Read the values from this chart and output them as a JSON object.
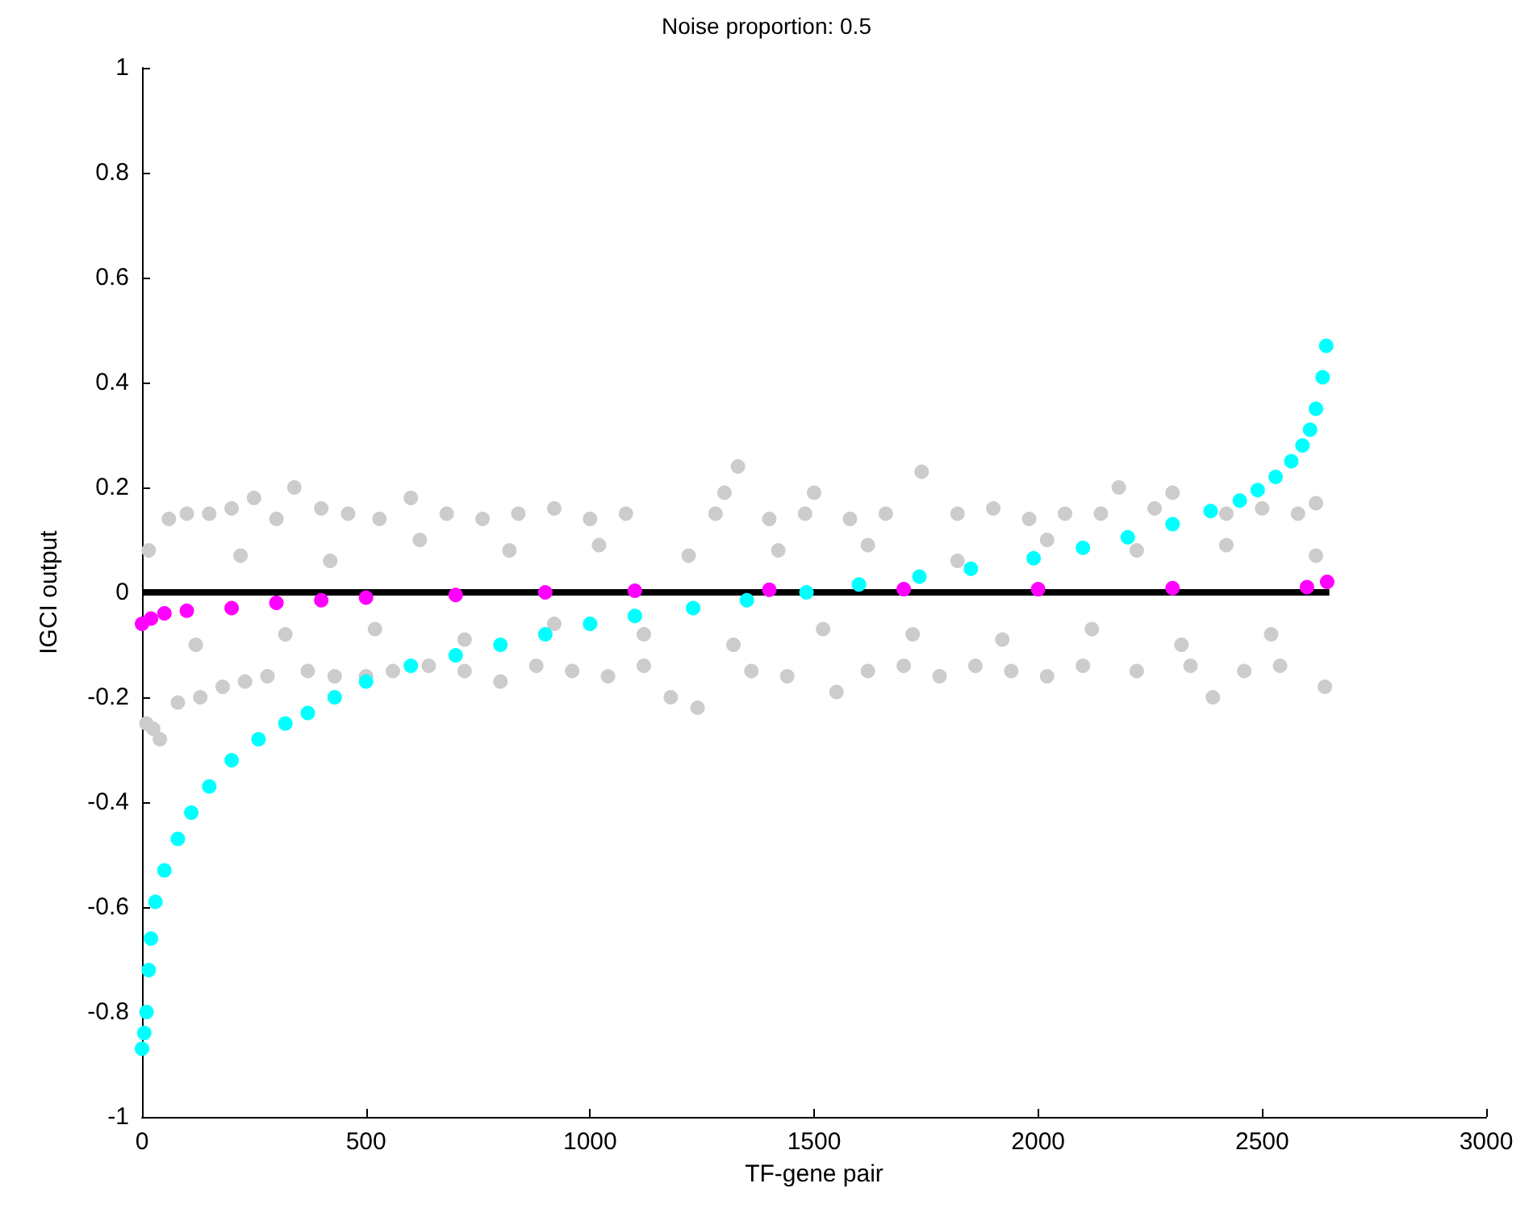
{
  "chart_data": {
    "type": "scatter",
    "title": "Noise proportion: 0.5",
    "xlabel": "TF-gene pair",
    "ylabel": "IGCI output",
    "xlim": [
      0,
      3000
    ],
    "xticks": [
      0,
      500,
      1000,
      1500,
      2000,
      2500,
      3000
    ],
    "ylim": [
      -1,
      1
    ],
    "yticks": [
      -1,
      -0.8,
      -0.6,
      -0.4,
      -0.2,
      0,
      0.2,
      0.4,
      0.6,
      0.8,
      1
    ],
    "grid": false,
    "marker": "circle",
    "series": [
      {
        "color": "#cccccc",
        "x": [
          10,
          25,
          40,
          60,
          80,
          100,
          130,
          150,
          180,
          200,
          230,
          250,
          280,
          300,
          340,
          370,
          400,
          430,
          460,
          500,
          530,
          560,
          600,
          640,
          680,
          720,
          760,
          800,
          840,
          880,
          920,
          960,
          1000,
          1040,
          1080,
          1120,
          1180,
          1240,
          1280,
          1300,
          1330,
          1360,
          1400,
          1440,
          1480,
          1500,
          1550,
          1580,
          1620,
          1660,
          1700,
          1740,
          1780,
          1820,
          1860,
          1900,
          1940,
          1980,
          2020,
          2060,
          2100,
          2140,
          2180,
          2220,
          2260,
          2300,
          2340,
          2390,
          2420,
          2460,
          2500,
          2540,
          2580,
          2620,
          2640,
          15,
          120,
          220,
          320,
          420,
          520,
          620,
          720,
          820,
          920,
          1020,
          1120,
          1220,
          1320,
          1420,
          1520,
          1620,
          1720,
          1820,
          1920,
          2020,
          2120,
          2220,
          2320,
          2420,
          2520,
          2620
        ],
        "values": [
          -0.25,
          -0.26,
          -0.28,
          0.14,
          -0.21,
          0.15,
          -0.2,
          0.15,
          -0.18,
          0.16,
          -0.17,
          0.18,
          -0.16,
          0.14,
          0.2,
          -0.15,
          0.16,
          -0.16,
          0.15,
          -0.16,
          0.14,
          -0.15,
          0.18,
          -0.14,
          0.15,
          -0.15,
          0.14,
          -0.17,
          0.15,
          -0.14,
          0.16,
          -0.15,
          0.14,
          -0.16,
          0.15,
          -0.14,
          -0.2,
          -0.22,
          0.15,
          0.19,
          0.24,
          -0.15,
          0.14,
          -0.16,
          0.15,
          0.19,
          -0.19,
          0.14,
          -0.15,
          0.15,
          -0.14,
          0.23,
          -0.16,
          0.15,
          -0.14,
          0.16,
          -0.15,
          0.14,
          -0.16,
          0.15,
          -0.14,
          0.15,
          0.2,
          -0.15,
          0.16,
          0.19,
          -0.14,
          -0.2,
          0.15,
          -0.15,
          0.16,
          -0.14,
          0.15,
          0.17,
          -0.18,
          0.08,
          -0.1,
          0.07,
          -0.08,
          0.06,
          -0.07,
          0.1,
          -0.09,
          0.08,
          -0.06,
          0.09,
          -0.08,
          0.07,
          -0.1,
          0.08,
          -0.07,
          0.09,
          -0.08,
          0.06,
          -0.09,
          0.1,
          -0.07,
          0.08,
          -0.1,
          0.09,
          -0.08,
          0.07
        ]
      },
      {
        "color": "#00ffff",
        "x": [
          0,
          5,
          10,
          15,
          20,
          30,
          50,
          80,
          110,
          150,
          200,
          260,
          320,
          370,
          430,
          500,
          600,
          700,
          800,
          900,
          1000,
          1100,
          1230,
          1350,
          1483,
          1600,
          1735,
          1850,
          1990,
          2100,
          2200,
          2300,
          2385,
          2450,
          2490,
          2530,
          2565,
          2590,
          2607,
          2620,
          2635,
          2643
        ],
        "values": [
          -0.87,
          -0.84,
          -0.8,
          -0.72,
          -0.66,
          -0.59,
          -0.53,
          -0.47,
          -0.42,
          -0.37,
          -0.32,
          -0.28,
          -0.25,
          -0.23,
          -0.2,
          -0.17,
          -0.14,
          -0.12,
          -0.1,
          -0.08,
          -0.06,
          -0.045,
          -0.03,
          -0.015,
          0,
          0.015,
          0.03,
          0.045,
          0.065,
          0.085,
          0.105,
          0.13,
          0.155,
          0.175,
          0.195,
          0.22,
          0.25,
          0.28,
          0.31,
          0.35,
          0.41,
          0.47
        ]
      },
      {
        "color": "#ff00ff",
        "x": [
          0,
          20,
          50,
          100,
          200,
          300,
          400,
          500,
          700,
          900,
          1100,
          1400,
          1700,
          2000,
          2300,
          2600,
          2645
        ],
        "values": [
          -0.06,
          -0.05,
          -0.04,
          -0.035,
          -0.03,
          -0.02,
          -0.015,
          -0.01,
          -0.005,
          0,
          0.003,
          0.005,
          0.006,
          0.006,
          0.008,
          0.01,
          0.02
        ]
      },
      {
        "type": "line",
        "marker": "none",
        "color": "#000000",
        "x": [
          0,
          2650
        ],
        "values": [
          0,
          0
        ]
      }
    ]
  }
}
